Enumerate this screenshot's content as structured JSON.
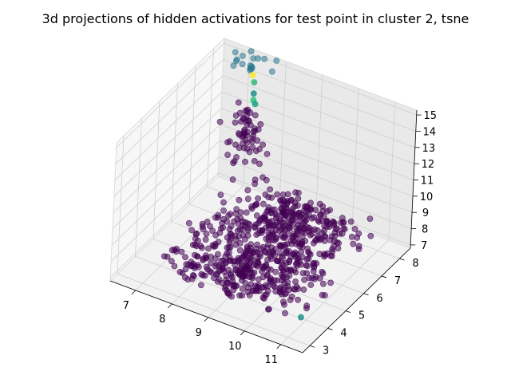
{
  "chart_data": {
    "type": "scatter",
    "projection": "3d",
    "title": "3d projections of hidden activations for test point in cluster 2, tsne",
    "xlabel": "",
    "ylabel": "",
    "zlabel": "",
    "xlim": [
      6.3,
      11.6
    ],
    "ylim": [
      2.6,
      8.6
    ],
    "zlim": [
      6.8,
      15.3
    ],
    "xticks": [
      "7",
      "8",
      "9",
      "10",
      "11"
    ],
    "yticks": [
      "3",
      "4",
      "5",
      "6",
      "7",
      "8"
    ],
    "zticks": [
      "7",
      "8",
      "9",
      "10",
      "11",
      "12",
      "13",
      "14",
      "15"
    ],
    "grid": true,
    "colormap": "viridis",
    "point_color": "#440154",
    "point_alpha": 0.55,
    "pane_colors": [
      "#f2f2f2",
      "#e9e9e9",
      "#f7f7f7"
    ],
    "series": [
      {
        "cluster_region": "lower dense cloud",
        "color": "#440154",
        "n_points": 700,
        "x_range": [
          6.6,
          11.4
        ],
        "y_range": [
          3.0,
          8.4
        ],
        "z_range": [
          7.0,
          9.0
        ]
      },
      {
        "cluster_region": "vertical column",
        "color": "#440154",
        "n_points": 60,
        "x_center": 7.2,
        "y_center": 8.2,
        "z_range": [
          9.0,
          12.0
        ]
      },
      {
        "cluster_region": "top cluster",
        "color": "#2a788e",
        "n_points": 18,
        "x_center": 7.2,
        "y_center": 8.3,
        "z_range": [
          14.6,
          15.2
        ]
      },
      {
        "cluster_region": "transition points",
        "values": [
          {
            "x": 7.3,
            "y": 8.2,
            "z": 14.3,
            "color": "#fde725"
          },
          {
            "x": 7.35,
            "y": 8.2,
            "z": 13.9,
            "color": "#35b779"
          },
          {
            "x": 7.35,
            "y": 8.2,
            "z": 13.2,
            "color": "#21918c"
          },
          {
            "x": 7.35,
            "y": 8.2,
            "z": 12.8,
            "color": "#2ec27e"
          },
          {
            "x": 7.4,
            "y": 8.2,
            "z": 12.6,
            "color": "#1fa187"
          },
          {
            "x": 11.0,
            "y": 3.7,
            "z": 7.3,
            "color": "#21918c"
          }
        ]
      }
    ]
  }
}
